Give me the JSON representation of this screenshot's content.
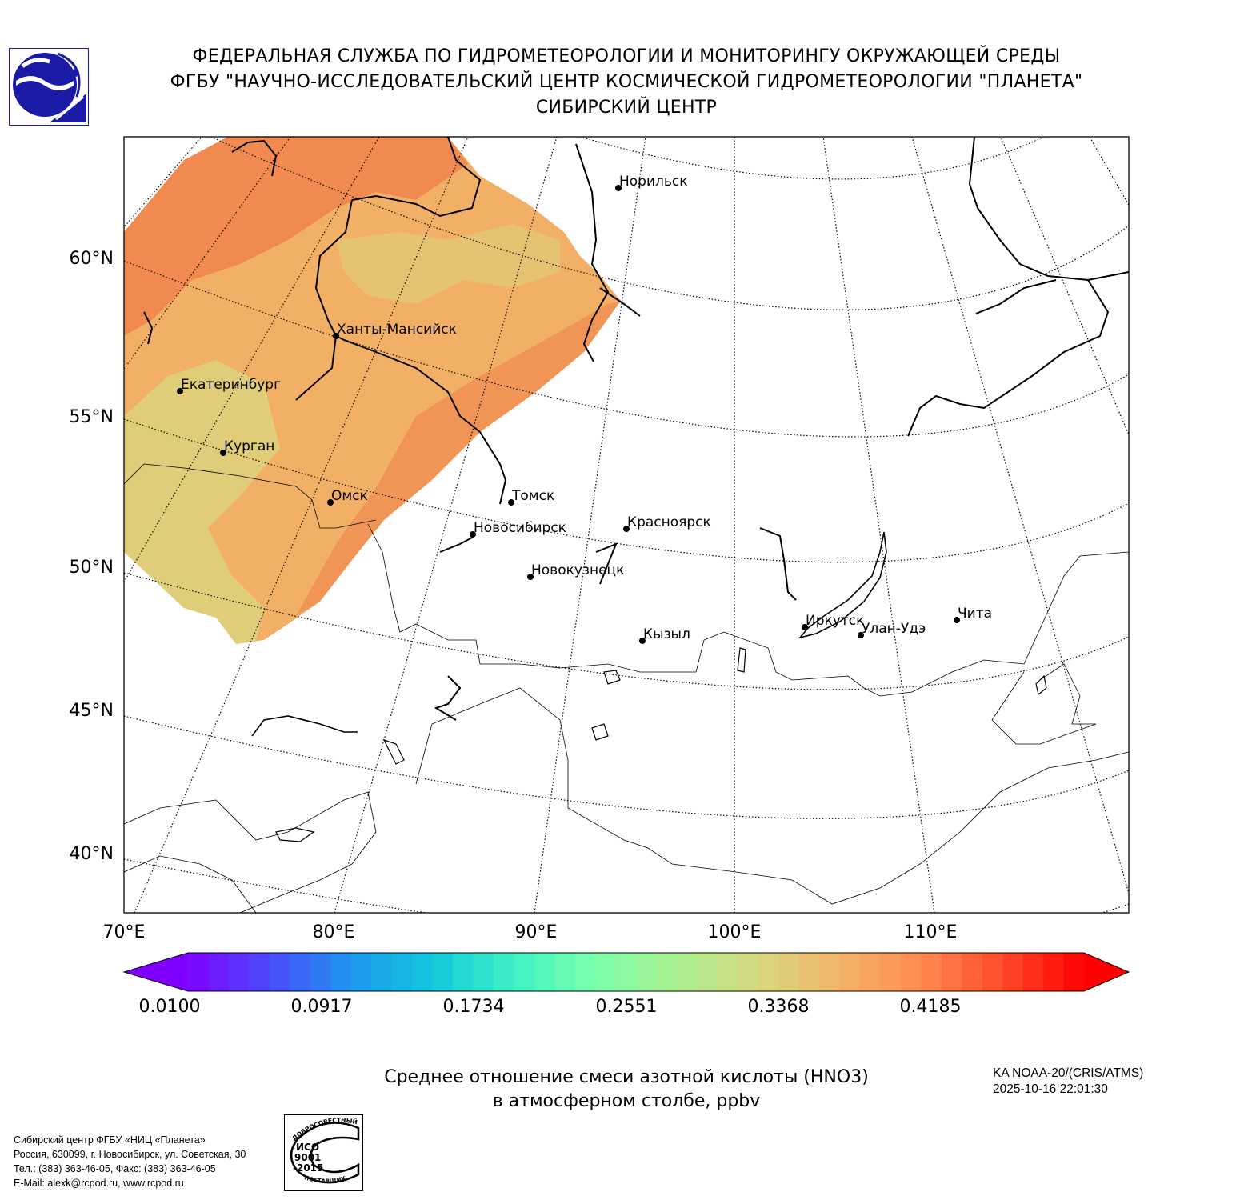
{
  "header": {
    "line1": "ФЕДЕРАЛЬНАЯ СЛУЖБА ПО ГИДРОМЕТЕОРОЛОГИИ И МОНИТОРИНГУ ОКРУЖАЮЩЕЙ СРЕДЫ",
    "line2": "ФГБУ \"НАУЧНО-ИССЛЕДОВАТЕЛЬСКИЙ ЦЕНТР КОСМИЧЕСКОЙ ГИДРОМЕТЕОРОЛОГИИ \"ПЛАНЕТА\"",
    "line3": "СИБИРСКИЙ ЦЕНТР",
    "logo_color": "#1a1aa6"
  },
  "map": {
    "lat_labels": [
      "60°N",
      "55°N",
      "50°N",
      "45°N",
      "40°N"
    ],
    "lon_labels": [
      "70°E",
      "80°E",
      "90°E",
      "100°E",
      "110°E"
    ],
    "cities": [
      {
        "name": "Норильск"
      },
      {
        "name": "Ханты-Мансийск"
      },
      {
        "name": "Екатеринбург"
      },
      {
        "name": "Курган"
      },
      {
        "name": "Омск"
      },
      {
        "name": "Томск"
      },
      {
        "name": "Новосибирск"
      },
      {
        "name": "Красноярск"
      },
      {
        "name": "Новокузнецк"
      },
      {
        "name": "Кызыл"
      },
      {
        "name": "Иркутск"
      },
      {
        "name": "Улан-Удэ"
      },
      {
        "name": "Чита"
      }
    ],
    "field_colors": {
      "high": "#f08a50",
      "mid": "#f2b066",
      "low": "#dcd27e"
    }
  },
  "colorbar": {
    "ticks": [
      "0.0100",
      "0.0917",
      "0.1734",
      "0.2551",
      "0.3368",
      "0.4185"
    ],
    "colors": [
      "#7f00ff",
      "#4a4cfb",
      "#1e96f0",
      "#12c8dc",
      "#3ef0c4",
      "#7cffaa",
      "#aaf090",
      "#d8d880",
      "#f2b46a",
      "#ff8a52",
      "#ff4a2c",
      "#ff0000"
    ]
  },
  "footer": {
    "title_line1": "Среднее отношение смеси азотной кислоты (HNO3)",
    "title_line2": "в атмосферном столбе, ppbv",
    "satellite": "KA NOAA-20/(CRIS/ATMS)",
    "datetime": "2025-10-16 22:01:30",
    "address": [
      "Сибирский центр ФГБУ «НИЦ «Планета»",
      "Россия, 630099, г. Новосибирск, ул. Советская, 30",
      "Тел.: (383) 363-46-05, Факс: (383) 363-46-05",
      "E-Mail: alexk@rcpod.ru, www.rcpod.ru"
    ],
    "iso_stamp": {
      "top": "ДОБРОСОВЕСТНЫЙ",
      "mid1": "ИСО",
      "mid2": "9001",
      "mid3": "-2015",
      "bottom": "ПОСТАВЩИК"
    }
  }
}
